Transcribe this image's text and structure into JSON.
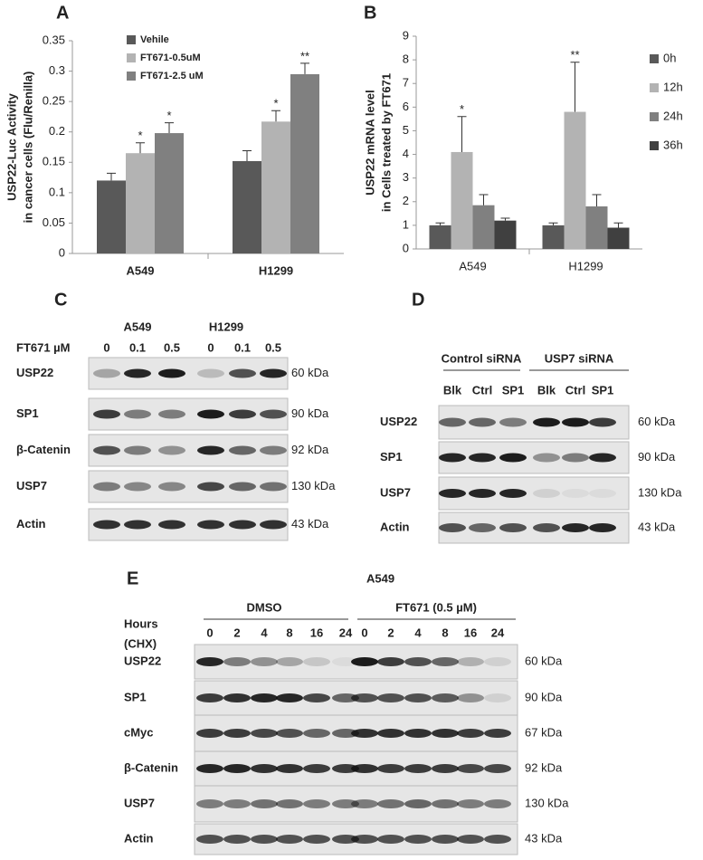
{
  "chart_data": [
    {
      "type": "bar",
      "panel": "A",
      "ylabel": [
        "USP22-Luc Activity",
        "in cancer cells (Flu/Renilla)"
      ],
      "categories": [
        "A549",
        "H1299"
      ],
      "series": [
        {
          "name": "Vehile",
          "color": "#595959",
          "values": [
            0.12,
            0.152
          ],
          "errors": [
            0.012,
            0.017
          ],
          "significance": [
            null,
            null
          ]
        },
        {
          "name": "FT671-0.5uM",
          "color": "#b3b3b3",
          "values": [
            0.165,
            0.217
          ],
          "errors": [
            0.017,
            0.018
          ],
          "significance": [
            "*",
            "*"
          ]
        },
        {
          "name": "FT671-2.5 uM",
          "color": "#808080",
          "values": [
            0.198,
            0.295
          ],
          "errors": [
            0.017,
            0.018
          ],
          "significance": [
            "*",
            "**"
          ]
        }
      ],
      "ylim": [
        0,
        0.35
      ],
      "yticks": [
        0,
        0.05,
        0.1,
        0.15,
        0.2,
        0.25,
        0.3,
        0.35
      ],
      "legend": "upper left",
      "grid": false
    },
    {
      "type": "bar",
      "panel": "B",
      "ylabel": [
        "USP22 mRNA level",
        "in Cells treated by FT671"
      ],
      "categories": [
        "A549",
        "H1299"
      ],
      "series": [
        {
          "name": "0h",
          "color": "#595959",
          "values": [
            1,
            1
          ],
          "errors": [
            0.1,
            0.1
          ],
          "significance": [
            null,
            null
          ]
        },
        {
          "name": "12h",
          "color": "#b3b3b3",
          "values": [
            4.1,
            5.8
          ],
          "errors": [
            1.5,
            2.1
          ],
          "significance": [
            "*",
            "**"
          ]
        },
        {
          "name": "24h",
          "color": "#808080",
          "values": [
            1.85,
            1.8
          ],
          "errors": [
            0.45,
            0.5
          ],
          "significance": [
            null,
            null
          ]
        },
        {
          "name": "36h",
          "color": "#404040",
          "values": [
            1.2,
            0.9
          ],
          "errors": [
            0.1,
            0.2
          ],
          "significance": [
            null,
            null
          ]
        }
      ],
      "ylim": [
        0,
        9
      ],
      "yticks": [
        0,
        1,
        2,
        3,
        4,
        5,
        6,
        7,
        8,
        9
      ],
      "legend": "right",
      "grid": false
    }
  ],
  "blots": [
    {
      "panel": "C",
      "treatment": "FT671 µM",
      "groups": [
        "A549",
        "H1299"
      ],
      "lanes": [
        "0",
        "0.1",
        "0.5",
        "0",
        "0.1",
        "0.5"
      ],
      "rows": [
        {
          "protein": "USP22",
          "size": "60 kDa"
        },
        {
          "protein": "SP1",
          "size": "90 kDa"
        },
        {
          "protein": "β-Catenin",
          "size": "92 kDa"
        },
        {
          "protein": "USP7",
          "size": "130 kDa"
        },
        {
          "protein": "Actin",
          "size": "43 kDa"
        }
      ]
    },
    {
      "panel": "D",
      "groups": [
        "Control siRNA",
        "USP7 siRNA"
      ],
      "lanes": [
        "Blk",
        "Ctrl",
        "SP1",
        "Blk",
        "Ctrl",
        "SP1"
      ],
      "rows": [
        {
          "protein": "USP22",
          "size": "60 kDa"
        },
        {
          "protein": "SP1",
          "size": "90 kDa"
        },
        {
          "protein": "USP7",
          "size": "130 kDa"
        },
        {
          "protein": "Actin",
          "size": "43 kDa"
        }
      ]
    },
    {
      "panel": "E",
      "cell": "A549",
      "treatment": [
        "Hours",
        "(CHX)"
      ],
      "groups": [
        "DMSO",
        "FT671 (0.5 µM)"
      ],
      "lanes": [
        "0",
        "2",
        "4",
        "8",
        "16",
        "24",
        "0",
        "2",
        "4",
        "8",
        "16",
        "24"
      ],
      "rows": [
        {
          "protein": "USP22",
          "size": "60 kDa"
        },
        {
          "protein": "SP1",
          "size": "90 kDa"
        },
        {
          "protein": "cMyc",
          "size": "67 kDa"
        },
        {
          "protein": "β-Catenin",
          "size": "92 kDa"
        },
        {
          "protein": "USP7",
          "size": "130 kDa"
        },
        {
          "protein": "Actin",
          "size": "43 kDa"
        }
      ]
    }
  ]
}
